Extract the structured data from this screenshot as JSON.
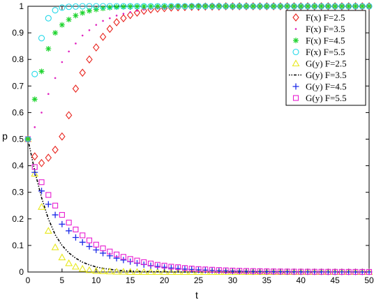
{
  "chart_data": {
    "type": "scatter",
    "xlabel": "t",
    "ylabel": "p",
    "xlim": [
      0,
      50
    ],
    "ylim": [
      0,
      1
    ],
    "xticks": [
      0,
      5,
      10,
      15,
      20,
      25,
      30,
      35,
      40,
      45,
      50
    ],
    "yticks": [
      0,
      0.1,
      0.2,
      0.3,
      0.4,
      0.5,
      0.6,
      0.7,
      0.8,
      0.9,
      1
    ],
    "grid": false,
    "legend_position": "top-right",
    "x": [
      0,
      1,
      2,
      3,
      4,
      5,
      6,
      7,
      8,
      9,
      10,
      11,
      12,
      13,
      14,
      15,
      16,
      17,
      18,
      19,
      20,
      21,
      22,
      23,
      24,
      25,
      26,
      27,
      28,
      29,
      30,
      31,
      32,
      33,
      34,
      35,
      36,
      37,
      38,
      39,
      40,
      41,
      42,
      43,
      44,
      45,
      46,
      47,
      48,
      49,
      50
    ],
    "series": [
      {
        "name": "F(x) F=2.5",
        "marker": "diamond",
        "color": "#e8221c",
        "values": [
          0.5,
          0.435,
          0.41,
          0.43,
          0.46,
          0.51,
          0.59,
          0.69,
          0.75,
          0.8,
          0.845,
          0.885,
          0.915,
          0.94,
          0.955,
          0.967,
          0.976,
          0.983,
          0.988,
          0.991,
          0.993,
          0.995,
          0.996,
          0.997,
          0.998,
          0.998,
          0.999,
          0.999,
          0.999,
          1,
          1,
          1,
          1,
          1,
          1,
          1,
          1,
          1,
          1,
          1,
          1,
          1,
          1,
          1,
          1,
          1,
          1,
          1,
          1,
          1,
          1
        ]
      },
      {
        "name": "F(x) F=3.5",
        "marker": "dot",
        "color": "#e020c0",
        "values": [
          0.5,
          0.545,
          0.6,
          0.67,
          0.73,
          0.79,
          0.83,
          0.86,
          0.89,
          0.91,
          0.93,
          0.945,
          0.955,
          0.965,
          0.972,
          0.978,
          0.983,
          0.987,
          0.99,
          0.992,
          0.994,
          0.995,
          0.996,
          0.997,
          0.998,
          0.998,
          0.999,
          0.999,
          0.999,
          1,
          1,
          1,
          1,
          1,
          1,
          1,
          1,
          1,
          1,
          1,
          1,
          1,
          1,
          1,
          1,
          1,
          1,
          1,
          1,
          1,
          1
        ]
      },
      {
        "name": "F(x) F=4.5",
        "marker": "asterisk",
        "color": "#1fd42f",
        "values": [
          0.5,
          0.65,
          0.755,
          0.84,
          0.9,
          0.93,
          0.95,
          0.965,
          0.975,
          0.983,
          0.988,
          0.992,
          0.995,
          0.997,
          0.998,
          0.999,
          0.999,
          1,
          1,
          1,
          1,
          1,
          1,
          1,
          1,
          1,
          1,
          1,
          1,
          1,
          1,
          1,
          1,
          1,
          1,
          1,
          1,
          1,
          1,
          1,
          1,
          1,
          1,
          1,
          1,
          1,
          1,
          1,
          1,
          1,
          1
        ]
      },
      {
        "name": "F(x) F=5.5",
        "marker": "circle",
        "color": "#22d8e8",
        "values": [
          0.5,
          0.745,
          0.88,
          0.955,
          0.985,
          0.995,
          0.998,
          0.999,
          1,
          1,
          1,
          1,
          1,
          1,
          1,
          1,
          1,
          1,
          1,
          1,
          1,
          1,
          1,
          1,
          1,
          1,
          1,
          1,
          1,
          1,
          1,
          1,
          1,
          1,
          1,
          1,
          1,
          1,
          1,
          1,
          1,
          1,
          1,
          1,
          1,
          1,
          1,
          1,
          1,
          1,
          1
        ]
      },
      {
        "name": "G(y) F=2.5",
        "marker": "triangle",
        "color": "#e8e81c",
        "values": [
          0.5,
          0.37,
          0.245,
          0.155,
          0.093,
          0.055,
          0.033,
          0.02,
          0.012,
          0.007,
          0.004,
          0.003,
          0.002,
          0.001,
          0.001,
          0,
          0,
          0,
          0,
          0,
          0,
          0,
          0,
          0,
          0,
          0,
          0,
          0,
          0,
          0,
          0,
          0,
          0,
          0,
          0,
          0,
          0,
          0,
          0,
          0,
          0,
          0,
          0,
          0,
          0,
          0,
          0,
          0,
          0,
          0,
          0
        ]
      },
      {
        "name": "G(y) F=3.5",
        "marker": "dashdot",
        "color": "#000000",
        "values": [
          0.5,
          0.38,
          0.28,
          0.2,
          0.14,
          0.1,
          0.072,
          0.052,
          0.037,
          0.027,
          0.019,
          0.014,
          0.01,
          0.007,
          0.005,
          0.004,
          0.003,
          0.002,
          0.0015,
          0.001,
          0.001,
          0,
          0,
          0,
          0,
          0,
          0,
          0,
          0,
          0,
          0,
          0,
          0,
          0,
          0,
          0,
          0,
          0,
          0,
          0,
          0,
          0,
          0,
          0,
          0,
          0,
          0,
          0,
          0,
          0,
          0
        ]
      },
      {
        "name": "G(y) F=4.5",
        "marker": "plus",
        "color": "#1c2ae8",
        "values": [
          0.5,
          0.375,
          0.305,
          0.255,
          0.215,
          0.18,
          0.155,
          0.13,
          0.112,
          0.096,
          0.083,
          0.071,
          0.061,
          0.052,
          0.045,
          0.039,
          0.033,
          0.028,
          0.024,
          0.021,
          0.018,
          0.015,
          0.013,
          0.011,
          0.0095,
          0.008,
          0.007,
          0.006,
          0.005,
          0.0043,
          0.0037,
          0.0032,
          0.0027,
          0.0023,
          0.002,
          0.0017,
          0.0015,
          0.0013,
          0.0011,
          0.001,
          0.0008,
          0.0007,
          0.0006,
          0.0005,
          0.0004,
          0.0004,
          0.0003,
          0.0003,
          0.0002,
          0.0002,
          0.0002
        ]
      },
      {
        "name": "G(y) F=5.5",
        "marker": "square",
        "color": "#e81cd0",
        "values": [
          0.5,
          0.395,
          0.338,
          0.29,
          0.25,
          0.215,
          0.186,
          0.16,
          0.138,
          0.119,
          0.103,
          0.089,
          0.077,
          0.066,
          0.057,
          0.049,
          0.043,
          0.037,
          0.032,
          0.027,
          0.024,
          0.02,
          0.018,
          0.015,
          0.013,
          0.011,
          0.0098,
          0.0085,
          0.0073,
          0.0063,
          0.0054,
          0.0047,
          0.004,
          0.0035,
          0.003,
          0.0026,
          0.0022,
          0.0019,
          0.0017,
          0.0014,
          0.0012,
          0.0011,
          0.0009,
          0.0008,
          0.0007,
          0.0006,
          0.0005,
          0.0004,
          0.0004,
          0.0003,
          0.0003
        ]
      }
    ]
  }
}
